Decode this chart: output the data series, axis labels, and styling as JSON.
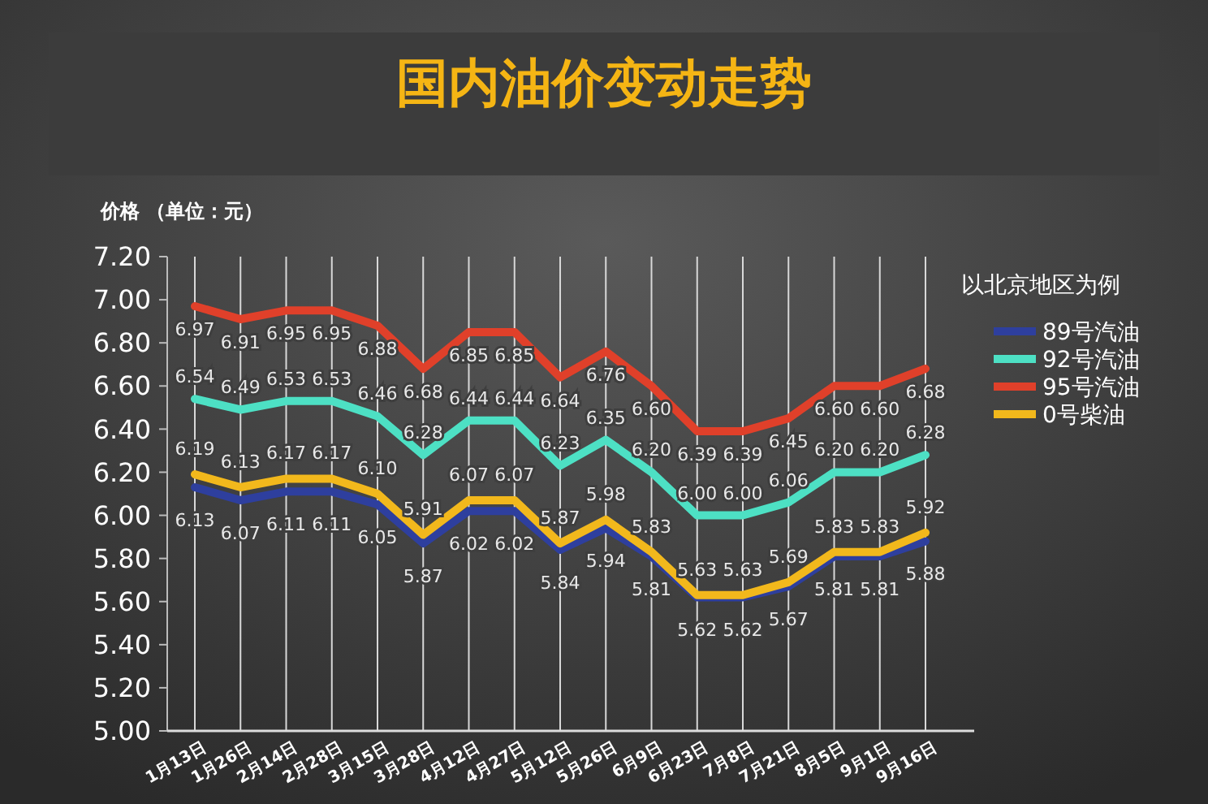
{
  "chart_data": {
    "type": "line",
    "title": "国内油价变动走势",
    "ylabel": "价格 （单位：元）",
    "legend_title": "以北京地区为例",
    "categories": [
      "1月13日",
      "1月26日",
      "2月14日",
      "2月28日",
      "3月15日",
      "3月28日",
      "4月12日",
      "4月27日",
      "5月12日",
      "5月26日",
      "6月9日",
      "6月23日",
      "7月8日",
      "7月21日",
      "8月5日",
      "9月1日",
      "9月16日"
    ],
    "series": [
      {
        "name": "89号汽油",
        "color": "#2e3f9e",
        "values": [
          6.13,
          6.07,
          6.11,
          6.11,
          6.05,
          5.87,
          6.02,
          6.02,
          5.84,
          5.94,
          5.81,
          5.62,
          5.62,
          5.67,
          5.81,
          5.81,
          5.88
        ],
        "value_labels": [
          "6.13",
          "6.07",
          "6.11",
          "6.11",
          "6.05",
          "5.87",
          "6.02",
          "6.02",
          "5.84",
          "5.94",
          "5.81",
          "5.62",
          "5.62",
          "5.67",
          "5.81",
          "5.81",
          "5.88"
        ]
      },
      {
        "name": "92号汽油",
        "color": "#4de0c4",
        "values": [
          6.54,
          6.49,
          6.53,
          6.53,
          6.46,
          6.28,
          6.44,
          6.44,
          6.23,
          6.35,
          6.2,
          6.0,
          6.0,
          6.06,
          6.2,
          6.2,
          6.28
        ],
        "value_labels": [
          "6.54",
          "6.49",
          "6.53",
          "6.53",
          "6.46",
          "6.28",
          "6.44",
          "6.44",
          "6.23",
          "6.35",
          "6.20",
          "6.00",
          "6.00",
          "6.06",
          "6.20",
          "6.20",
          "6.28"
        ]
      },
      {
        "name": "95号汽油",
        "color": "#e0402a",
        "values": [
          6.97,
          6.91,
          6.95,
          6.95,
          6.88,
          6.68,
          6.85,
          6.85,
          6.64,
          6.76,
          6.6,
          6.39,
          6.39,
          6.45,
          6.6,
          6.6,
          6.68
        ],
        "value_labels": [
          "6.97",
          "6.91",
          "6.95",
          "6.95",
          "6.88",
          "6.68",
          "6.85",
          "6.85",
          "6.64",
          "6.76",
          "6.60",
          "6.39",
          "6.39",
          "6.45",
          "6.60",
          "6.60",
          "6.68"
        ]
      },
      {
        "name": "0号柴油",
        "color": "#f2b81c",
        "values": [
          6.19,
          6.13,
          6.17,
          6.17,
          6.1,
          5.91,
          6.07,
          6.07,
          5.87,
          5.98,
          5.83,
          5.63,
          5.63,
          5.69,
          5.83,
          5.83,
          5.92
        ],
        "value_labels": [
          "6.19",
          "6.13",
          "6.17",
          "6.17",
          "6.10",
          "5.91",
          "6.07",
          "6.07",
          "5.87",
          "5.98",
          "5.83",
          "5.63",
          "5.63",
          "5.69",
          "5.83",
          "5.83",
          "5.92"
        ]
      }
    ],
    "ylim": [
      5.0,
      7.2
    ],
    "yticks": [
      {
        "value": 5.0,
        "label": "5.00"
      },
      {
        "value": 5.2,
        "label": "5.20"
      },
      {
        "value": 5.4,
        "label": "5.40"
      },
      {
        "value": 5.6,
        "label": "5.60"
      },
      {
        "value": 5.8,
        "label": "5.80"
      },
      {
        "value": 6.0,
        "label": "6.00"
      },
      {
        "value": 6.2,
        "label": "6.20"
      },
      {
        "value": 6.4,
        "label": "6.40"
      },
      {
        "value": 6.6,
        "label": "6.60"
      },
      {
        "value": 6.8,
        "label": "6.80"
      },
      {
        "value": 7.0,
        "label": "7.00"
      },
      {
        "value": 7.2,
        "label": "7.20"
      }
    ],
    "grid": "x",
    "legend": "top right",
    "marker": "none",
    "line_style": "solid"
  }
}
